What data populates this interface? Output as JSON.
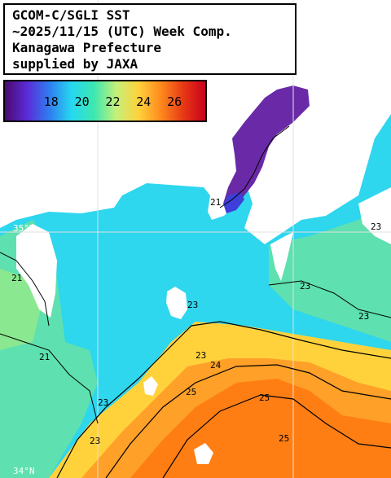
{
  "title": {
    "lines": [
      "GCOM-C/SGLI SST",
      "~2025/11/15 (UTC) Week Comp.",
      "Kanagawa Prefecture",
      "supplied by JAXA"
    ]
  },
  "legend": {
    "tick_labels": [
      "18",
      "20",
      "22",
      "24",
      "26"
    ],
    "tick_values": [
      18,
      20,
      22,
      24,
      26
    ],
    "range": [
      15,
      28
    ],
    "colors": [
      "#4b0a6e",
      "#5b2bd8",
      "#2f7df0",
      "#26d8f0",
      "#3ce8b0",
      "#c4f07a",
      "#ffd23c",
      "#ff8a1e",
      "#e83a14",
      "#c8001e"
    ]
  },
  "map": {
    "contour_labels": [
      "23",
      "23",
      "23",
      "23",
      "21",
      "21",
      "23",
      "23",
      "24",
      "25",
      "25",
      "23",
      "25",
      "21"
    ],
    "coordinate_labels": [
      "35°N",
      "34°N"
    ],
    "colors": {
      "land": "#ffffff",
      "cold_bay": "#6a2aa8",
      "cool_sea": "#2ed6ee",
      "mid_sea": "#58e0a8",
      "warm_sea": "#ff9a1e",
      "hot_sea": "#ff7a10",
      "contour": "#000000",
      "grid": "#e0e0e0"
    }
  }
}
